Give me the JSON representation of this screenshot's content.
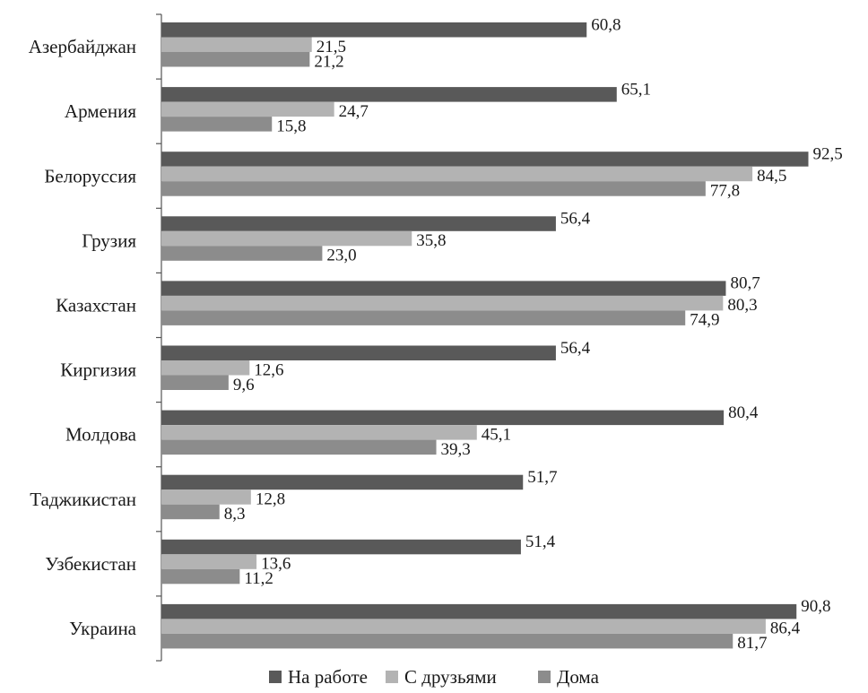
{
  "chart_data": {
    "type": "bar",
    "orientation": "horizontal",
    "title": "",
    "xlabel": "",
    "ylabel": "",
    "xlim": [
      0,
      100
    ],
    "grid": false,
    "legend_position": "bottom",
    "categories": [
      "Азербайджан",
      "Армения",
      "Белоруссия",
      "Грузия",
      "Казахстан",
      "Киргизия",
      "Молдова",
      "Таджикистан",
      "Узбекистан",
      "Украина"
    ],
    "series": [
      {
        "name": "На работе",
        "color": "#595959",
        "values": [
          60.8,
          65.1,
          92.5,
          56.4,
          80.7,
          56.4,
          80.4,
          51.7,
          51.4,
          90.8
        ],
        "labels": [
          "60,8",
          "65,1",
          "92,5",
          "56,4",
          "80,7",
          "56,4",
          "80,4",
          "51,7",
          "51,4",
          "90,8"
        ]
      },
      {
        "name": "С друзьями",
        "color": "#b3b3b3",
        "values": [
          21.5,
          24.7,
          84.5,
          35.8,
          80.3,
          12.6,
          45.1,
          12.8,
          13.6,
          86.4
        ],
        "labels": [
          "21,5",
          "24,7",
          "84,5",
          "35,8",
          "80,3",
          "12,6",
          "45,1",
          "12,8",
          "13,6",
          "86,4"
        ]
      },
      {
        "name": "Дома",
        "color": "#8c8c8c",
        "values": [
          21.2,
          15.8,
          77.8,
          23.0,
          74.9,
          9.6,
          39.3,
          8.3,
          11.2,
          81.7
        ],
        "labels": [
          "21,2",
          "15,8",
          "77,8",
          "23,0",
          "74,9",
          "9,6",
          "39,3",
          "8,3",
          "11,2",
          "81,7"
        ]
      }
    ]
  }
}
